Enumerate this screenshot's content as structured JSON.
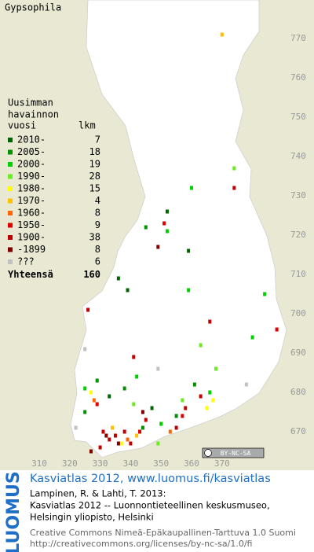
{
  "map": {
    "title": "Gypsophila",
    "legend_heading": [
      "Uusimman",
      "havainnon"
    ],
    "legend_col_headers": [
      "vuosi",
      "lkm"
    ],
    "legend": [
      {
        "label": "2010-",
        "count": 7,
        "color": "#006400",
        "squares": [
          [
            336,
            709
          ],
          [
            339,
            706
          ],
          [
            352,
            726
          ],
          [
            359,
            716
          ],
          [
            333,
            679
          ],
          [
            347,
            676
          ]
        ]
      },
      {
        "label": "2005-",
        "count": 18,
        "color": "#009000",
        "squares": [
          [
            345,
            722
          ],
          [
            325,
            675
          ],
          [
            338,
            681
          ],
          [
            355,
            674
          ],
          [
            361,
            682
          ],
          [
            329,
            683
          ],
          [
            344,
            671
          ]
        ]
      },
      {
        "label": "2000-",
        "count": 19,
        "color": "#00d000",
        "squares": [
          [
            360,
            732
          ],
          [
            359,
            706
          ],
          [
            384,
            705
          ],
          [
            380,
            694
          ],
          [
            325,
            681
          ],
          [
            342,
            684
          ],
          [
            350,
            672
          ],
          [
            366,
            680
          ],
          [
            352,
            721
          ]
        ]
      },
      {
        "label": "1990-",
        "count": 28,
        "color": "#66ee22",
        "squares": [
          [
            374,
            737
          ],
          [
            363,
            692
          ],
          [
            341,
            677
          ],
          [
            368,
            686
          ],
          [
            357,
            678
          ],
          [
            349,
            667
          ]
        ]
      },
      {
        "label": "1980-",
        "count": 15,
        "color": "#ffff00",
        "squares": [
          [
            327,
            680
          ],
          [
            365,
            676
          ],
          [
            337,
            667
          ],
          [
            367,
            678
          ]
        ]
      },
      {
        "label": "1970-",
        "count": 4,
        "color": "#ffc000",
        "squares": [
          [
            370,
            771
          ],
          [
            334,
            671
          ],
          [
            342,
            669
          ]
        ]
      },
      {
        "label": "1960-",
        "count": 8,
        "color": "#ff6600",
        "squares": [
          [
            328,
            678
          ],
          [
            339,
            668
          ],
          [
            353,
            670
          ]
        ]
      },
      {
        "label": "1950-",
        "count": 9,
        "color": "#e00000",
        "squares": [
          [
            351,
            723
          ],
          [
            388,
            696
          ],
          [
            329,
            677
          ],
          [
            343,
            670
          ],
          [
            357,
            674
          ]
        ]
      },
      {
        "label": "1900-",
        "count": 38,
        "color": "#c00000",
        "squares": [
          [
            374,
            732
          ],
          [
            326,
            701
          ],
          [
            366,
            698
          ],
          [
            341,
            689
          ],
          [
            331,
            670
          ],
          [
            333,
            668
          ],
          [
            335,
            669
          ],
          [
            338,
            670
          ],
          [
            340,
            667
          ],
          [
            345,
            673
          ],
          [
            355,
            671
          ],
          [
            358,
            676
          ],
          [
            363,
            679
          ],
          [
            330,
            666
          ]
        ]
      },
      {
        "label": "-1899",
        "count": 8,
        "color": "#800000",
        "squares": [
          [
            349,
            717
          ],
          [
            332,
            669
          ],
          [
            336,
            667
          ],
          [
            344,
            675
          ],
          [
            327,
            665
          ]
        ]
      },
      {
        "label": "???",
        "count": 6,
        "color": "#c0c0c0",
        "squares": [
          [
            325,
            691
          ],
          [
            349,
            686
          ],
          [
            378,
            682
          ],
          [
            322,
            671
          ]
        ]
      }
    ],
    "total_label": "Yhteensä",
    "total": 160,
    "xticks": [
      310,
      320,
      330,
      340,
      350,
      360,
      370
    ],
    "yticks": [
      670,
      680,
      690,
      700,
      710,
      720,
      730,
      740,
      750,
      760,
      770
    ],
    "badge": "BY-NC-SA"
  },
  "footer": {
    "logo": "LUOMUS",
    "link": "Kasviatlas 2012, www.luomus.fi/kasviatlas",
    "citation": [
      "Lampinen, R. & Lahti, T. 2013:",
      "Kasviatlas 2012 -- Luonnontieteellinen keskusmuseo,",
      "Helsingin yliopisto, Helsinki"
    ],
    "license": [
      "Creative Commons Nimeä-Epäkaupallinen-Tarttuva 1.0 Suomi",
      "http://creativecommons.org/licenses/by-nc-sa/1.0/fi"
    ]
  }
}
